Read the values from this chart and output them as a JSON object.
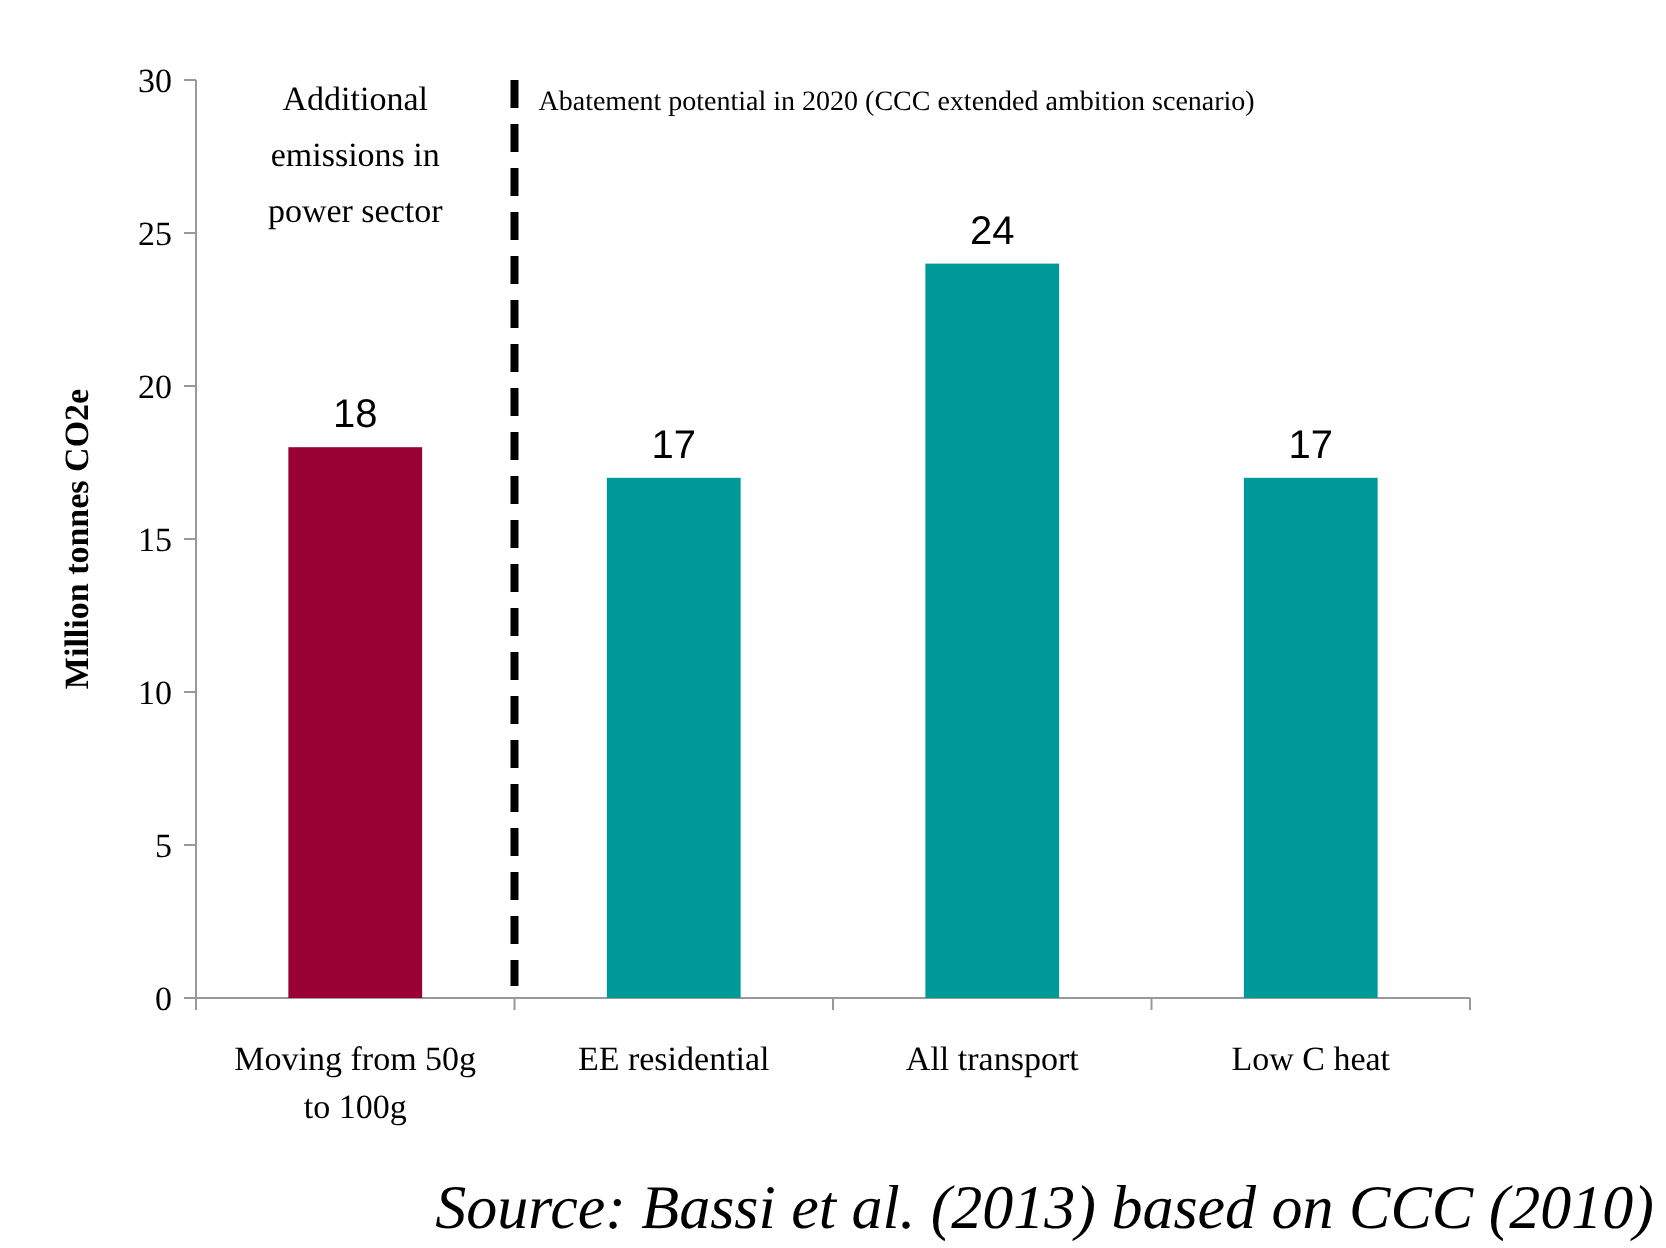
{
  "chart_data": {
    "type": "bar",
    "ylabel": "Million tonnes CO2e",
    "categories": [
      "Moving from 50g to 100g",
      "EE residential",
      "All transport",
      "Low C heat"
    ],
    "values": [
      18,
      17,
      24,
      17
    ],
    "colors": [
      "#990033",
      "#009999",
      "#009999",
      "#009999"
    ],
    "ylim": [
      0,
      30
    ],
    "yticks": [
      0,
      5,
      10,
      15,
      20,
      25,
      30
    ],
    "data_labels": true,
    "grid": false,
    "annotations": [
      "Additional emissions in power sector",
      "Abatement potential in 2020 (CCC extended ambition scenario)",
      "Source: Bassi et al. (2013) based on CCC (2010)"
    ]
  }
}
